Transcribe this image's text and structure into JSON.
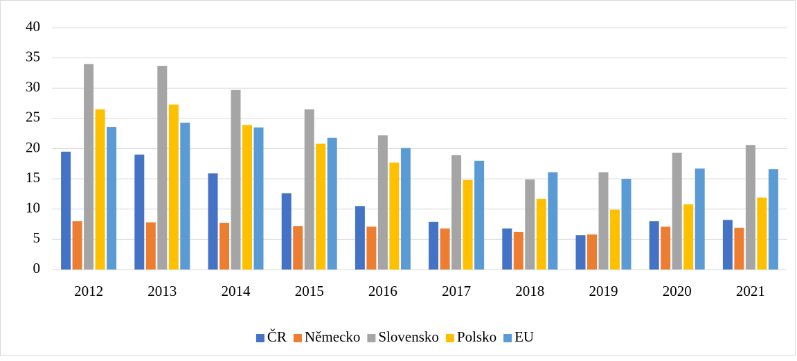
{
  "chart_data": {
    "type": "bar",
    "categories": [
      "2012",
      "2013",
      "2014",
      "2015",
      "2016",
      "2017",
      "2018",
      "2019",
      "2020",
      "2021"
    ],
    "series": [
      {
        "name": "ČR",
        "color": "#4472c4",
        "values": [
          19.5,
          19.0,
          15.9,
          12.6,
          10.5,
          7.9,
          6.8,
          5.7,
          8.0,
          8.2
        ]
      },
      {
        "name": "Německo",
        "color": "#ed7d31",
        "values": [
          8.0,
          7.8,
          7.7,
          7.2,
          7.1,
          6.8,
          6.2,
          5.8,
          7.1,
          6.9
        ]
      },
      {
        "name": "Slovensko",
        "color": "#a5a5a5",
        "values": [
          34.0,
          33.7,
          29.7,
          26.5,
          22.2,
          18.9,
          14.9,
          16.1,
          19.3,
          20.6
        ]
      },
      {
        "name": "Polsko",
        "color": "#ffc000",
        "values": [
          26.5,
          27.3,
          23.9,
          20.8,
          17.7,
          14.8,
          11.7,
          9.9,
          10.8,
          11.9
        ]
      },
      {
        "name": "EU",
        "color": "#5b9bd5",
        "values": [
          23.6,
          24.3,
          23.5,
          21.8,
          20.1,
          18.0,
          16.1,
          15.0,
          16.7,
          16.6
        ]
      }
    ],
    "ylim": [
      0,
      40
    ],
    "yticks": [
      0,
      5,
      10,
      15,
      20,
      25,
      30,
      35,
      40
    ],
    "grid": true,
    "legend": "bottom"
  }
}
